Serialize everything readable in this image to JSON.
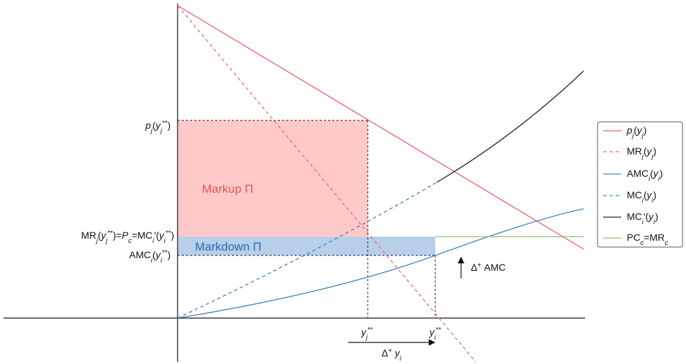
{
  "labels": {
    "price": [
      {
        "text": "p",
        "style": "italic"
      },
      {
        "text": "j",
        "style": "sub-italic"
      },
      {
        "text": "(",
        "style": "normal"
      },
      {
        "text": "y",
        "style": "italic"
      },
      {
        "text": "j",
        "style": "sub-italic"
      },
      {
        "text": "**",
        "style": "sup"
      },
      {
        "text": ")",
        "style": "normal"
      }
    ],
    "equality": [
      {
        "text": "MR",
        "style": "normal"
      },
      {
        "text": "j",
        "style": "sub-italic"
      },
      {
        "text": "(",
        "style": "normal"
      },
      {
        "text": "y",
        "style": "italic"
      },
      {
        "text": "j",
        "style": "sub-italic"
      },
      {
        "text": "**",
        "style": "sup"
      },
      {
        "text": ")=",
        "style": "normal"
      },
      {
        "text": "P",
        "style": "italic"
      },
      {
        "text": "c",
        "style": "sub-italic"
      },
      {
        "text": "=MC",
        "style": "normal"
      },
      {
        "text": "i",
        "style": "sub-italic"
      },
      {
        "text": "′(",
        "style": "normal"
      },
      {
        "text": "y",
        "style": "italic"
      },
      {
        "text": "i",
        "style": "sub-italic"
      },
      {
        "text": "**",
        "style": "sup"
      },
      {
        "text": ")",
        "style": "normal"
      }
    ],
    "amc": [
      {
        "text": "AMC",
        "style": "normal"
      },
      {
        "text": "i",
        "style": "sub-italic"
      },
      {
        "text": "(",
        "style": "normal"
      },
      {
        "text": "y",
        "style": "italic"
      },
      {
        "text": "i",
        "style": "sub-italic"
      },
      {
        "text": "**",
        "style": "sup"
      },
      {
        "text": ")",
        "style": "normal"
      }
    ],
    "markup": [
      {
        "text": "Markup Π",
        "style": "normal"
      }
    ],
    "markdown": [
      {
        "text": "Markdown Π",
        "style": "normal"
      }
    ],
    "delta_amc": [
      {
        "text": "Δ",
        "style": "normal"
      },
      {
        "text": "+",
        "style": "sup"
      },
      {
        "text": " AMC",
        "style": "normal"
      }
    ],
    "yj": [
      {
        "text": "y",
        "style": "italic"
      },
      {
        "text": "j",
        "style": "sub-italic"
      },
      {
        "text": "**",
        "style": "sup"
      }
    ],
    "yi": [
      {
        "text": "y",
        "style": "italic"
      },
      {
        "text": "i",
        "style": "sub-italic"
      },
      {
        "text": "**",
        "style": "sup"
      }
    ],
    "delta_y": [
      {
        "text": "Δ",
        "style": "normal"
      },
      {
        "text": "+",
        "style": "sup"
      },
      {
        "text": " ",
        "style": "normal"
      },
      {
        "text": "y",
        "style": "italic"
      },
      {
        "text": "i",
        "style": "sub-italic"
      }
    ]
  },
  "legend": [
    [
      {
        "text": "p",
        "style": "italic"
      },
      {
        "text": "j",
        "style": "sub-italic"
      },
      {
        "text": "(",
        "style": "normal"
      },
      {
        "text": "y",
        "style": "italic"
      },
      {
        "text": "j",
        "style": "sub-italic"
      },
      {
        "text": ")",
        "style": "normal"
      }
    ],
    [
      {
        "text": "MR",
        "style": "normal"
      },
      {
        "text": "j",
        "style": "sub-italic"
      },
      {
        "text": "(",
        "style": "normal"
      },
      {
        "text": "y",
        "style": "italic"
      },
      {
        "text": "j",
        "style": "sub-italic"
      },
      {
        "text": ")",
        "style": "normal"
      }
    ],
    [
      {
        "text": "AMC",
        "style": "normal"
      },
      {
        "text": "i",
        "style": "sub-italic"
      },
      {
        "text": "(",
        "style": "normal"
      },
      {
        "text": "y",
        "style": "italic"
      },
      {
        "text": "i",
        "style": "sub-italic"
      },
      {
        "text": ")",
        "style": "normal"
      }
    ],
    [
      {
        "text": "MC",
        "style": "normal"
      },
      {
        "text": "i",
        "style": "sub-italic"
      },
      {
        "text": "(",
        "style": "normal"
      },
      {
        "text": "y",
        "style": "italic"
      },
      {
        "text": "i",
        "style": "sub-italic"
      },
      {
        "text": ")",
        "style": "normal"
      }
    ],
    [
      {
        "text": "MC",
        "style": "normal"
      },
      {
        "text": "i",
        "style": "sub-italic"
      },
      {
        "text": "′(",
        "style": "normal"
      },
      {
        "text": "y",
        "style": "italic"
      },
      {
        "text": "i",
        "style": "sub-italic"
      },
      {
        "text": ")",
        "style": "normal"
      }
    ],
    [
      {
        "text": "PC",
        "style": "normal"
      },
      {
        "text": "c",
        "style": "sub-italic"
      },
      {
        "text": "=MR",
        "style": "normal"
      },
      {
        "text": "c",
        "style": "sub-italic"
      }
    ]
  ]
}
